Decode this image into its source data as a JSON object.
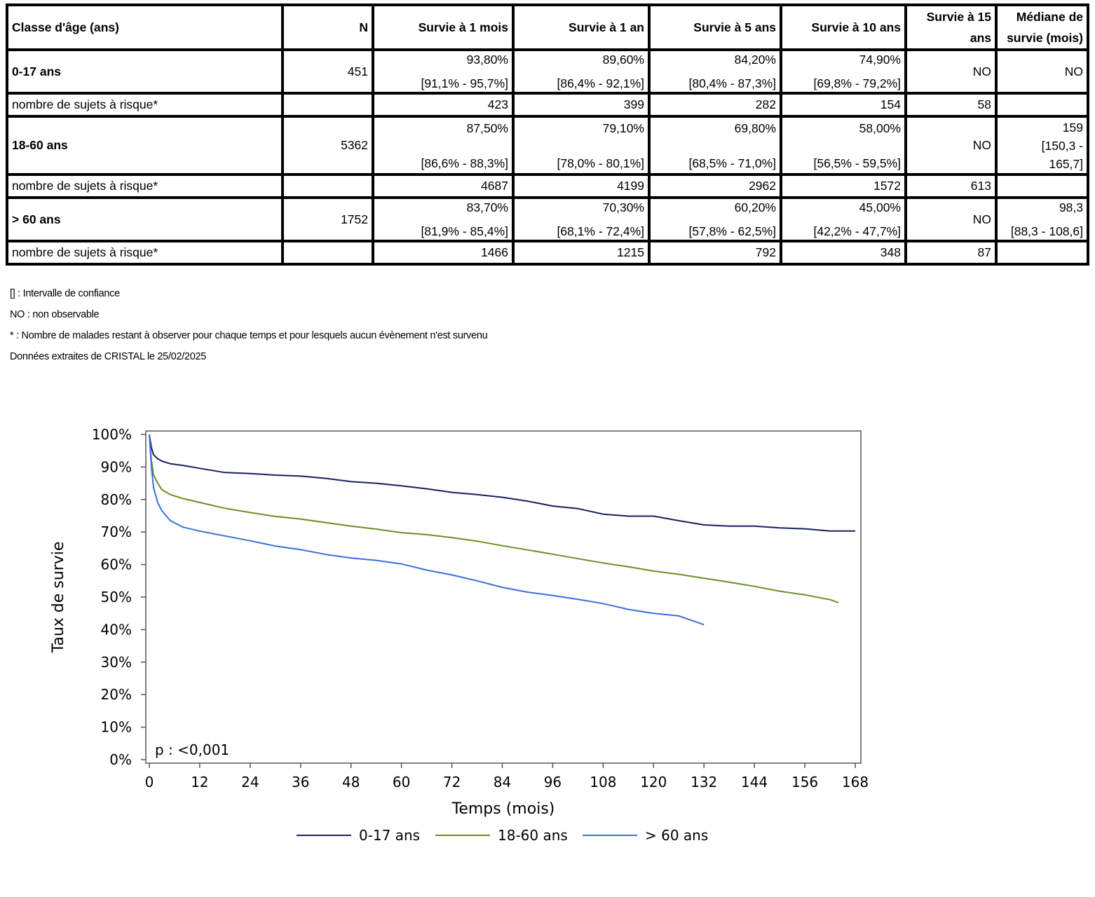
{
  "table": {
    "headers": {
      "age": "Classe d'âge (ans)",
      "n": "N",
      "m1": "Survie à 1 mois",
      "y1": "Survie à 1 an",
      "y5": "Survie à 5 ans",
      "y10": "Survie à 10 ans",
      "y15_line1": "Survie à 15",
      "y15_line2": "ans",
      "median_line1": "Médiane de",
      "median_line2": "survie (mois)"
    },
    "groups": [
      {
        "label": "0-17 ans",
        "n": "451",
        "m1": "93,80%",
        "m1_ci": "[91,1% - 95,7%]",
        "y1": "89,60%",
        "y1_ci": "[86,4% - 92,1%]",
        "y5": "84,20%",
        "y5_ci": "[80,4% - 87,3%]",
        "y10": "74,90%",
        "y10_ci": "[69,8% - 79,2%]",
        "y15": "NO",
        "median": "NO",
        "risk_label": "nombre de sujets à risque*",
        "risk": {
          "m1": "423",
          "y1": "399",
          "y5": "282",
          "y10": "154",
          "y15": "58",
          "median": ""
        }
      },
      {
        "label": "18-60 ans",
        "n": "5362",
        "m1": "87,50%",
        "m1_ci": "[86,6% - 88,3%]",
        "y1": "79,10%",
        "y1_ci": "[78,0% - 80,1%]",
        "y5": "69,80%",
        "y5_ci": "[68,5% - 71,0%]",
        "y10": "58,00%",
        "y10_ci": "[56,5% - 59,5%]",
        "y15": "NO",
        "median": "159",
        "median_ci_1": "[150,3 -",
        "median_ci_2": "165,7]",
        "risk_label": "nombre de sujets à risque*",
        "risk": {
          "m1": "4687",
          "y1": "4199",
          "y5": "2962",
          "y10": "1572",
          "y15": "613",
          "median": ""
        }
      },
      {
        "label": "> 60 ans",
        "n": "1752",
        "m1": "83,70%",
        "m1_ci": "[81,9% - 85,4%]",
        "y1": "70,30%",
        "y1_ci": "[68,1% - 72,4%]",
        "y5": "60,20%",
        "y5_ci": "[57,8% - 62,5%]",
        "y10": "45,00%",
        "y10_ci": "[42,2% - 47,7%]",
        "y15": "NO",
        "median": "98,3",
        "median_ci": "[88,3 - 108,6]",
        "risk_label": "nombre de sujets à risque*",
        "risk": {
          "m1": "1466",
          "y1": "1215",
          "y5": "792",
          "y10": "348",
          "y15": "87",
          "median": ""
        }
      }
    ]
  },
  "notes": [
    "[] : Intervalle de confiance",
    "NO : non observable",
    "* : Nombre de malades restant à observer pour chaque temps et pour lesquels aucun évènement n'est survenu",
    "Données extraites de CRISTAL le 25/02/2025"
  ],
  "chart_data": {
    "type": "line",
    "xlabel": "Temps (mois)",
    "ylabel": "Taux de survie",
    "annotation": "p : <0,001",
    "xlim": [
      0,
      168
    ],
    "ylim": [
      0,
      100
    ],
    "x_ticks": [
      0,
      12,
      24,
      36,
      48,
      60,
      72,
      84,
      96,
      108,
      120,
      132,
      144,
      156,
      168
    ],
    "y_ticks": [
      0,
      10,
      20,
      30,
      40,
      50,
      60,
      70,
      80,
      90,
      100
    ],
    "y_tick_labels": [
      "0%",
      "10%",
      "20%",
      "30%",
      "40%",
      "50%",
      "60%",
      "70%",
      "80%",
      "90%",
      "100%"
    ],
    "legend_position": "bottom",
    "series": [
      {
        "name": "0-17 ans",
        "color": "#1a1f5c",
        "x": [
          0,
          0.5,
          1,
          2,
          3,
          5,
          8,
          12,
          18,
          24,
          30,
          36,
          42,
          48,
          54,
          60,
          66,
          72,
          78,
          84,
          90,
          96,
          102,
          108,
          114,
          120,
          126,
          132,
          138,
          144,
          150,
          156,
          162,
          168
        ],
        "y": [
          100,
          96,
          93.8,
          92.5,
          91.8,
          91,
          90.5,
          89.6,
          88.3,
          88,
          87.5,
          87.2,
          86.5,
          85.5,
          85,
          84.2,
          83.3,
          82.2,
          81.5,
          80.7,
          79.5,
          78,
          77.2,
          75.5,
          74.9,
          74.9,
          73.5,
          72.2,
          71.8,
          71.8,
          71.3,
          71,
          70.3,
          70.3
        ]
      },
      {
        "name": "18-60 ans",
        "color": "#6b8e23",
        "x": [
          0,
          0.5,
          1,
          2,
          3,
          5,
          8,
          12,
          18,
          24,
          30,
          36,
          42,
          48,
          54,
          60,
          66,
          72,
          78,
          84,
          90,
          96,
          102,
          108,
          114,
          120,
          126,
          132,
          138,
          144,
          150,
          156,
          162,
          164
        ],
        "y": [
          100,
          92,
          87.5,
          85,
          83,
          81.5,
          80.3,
          79.1,
          77.3,
          76,
          74.8,
          74,
          72.9,
          71.8,
          70.9,
          69.8,
          69.2,
          68.3,
          67.2,
          65.8,
          64.5,
          63.2,
          61.8,
          60.5,
          59.3,
          58,
          57,
          55.8,
          54.6,
          53.3,
          51.8,
          50.7,
          49.2,
          48.3
        ]
      },
      {
        "name": "> 60 ans",
        "color": "#3a6fdc",
        "x": [
          0,
          0.5,
          1,
          2,
          3,
          5,
          8,
          12,
          18,
          24,
          30,
          36,
          42,
          48,
          54,
          60,
          66,
          72,
          78,
          84,
          90,
          96,
          102,
          108,
          114,
          120,
          126,
          132
        ],
        "y": [
          100,
          90,
          83.7,
          79,
          76.5,
          73.5,
          71.5,
          70.3,
          68.8,
          67.3,
          65.7,
          64.6,
          63.1,
          62,
          61.3,
          60.2,
          58.3,
          56.8,
          55,
          53,
          51.5,
          50.5,
          49.3,
          48,
          46.2,
          45,
          44.2,
          41.5
        ]
      }
    ]
  }
}
